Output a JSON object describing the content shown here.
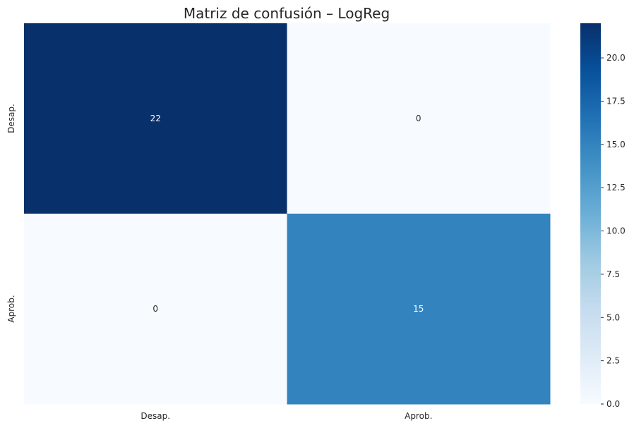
{
  "chart_data": {
    "type": "heatmap",
    "title": "Matriz de confusión – LogReg",
    "x_categories": [
      "Desap.",
      "Aprob."
    ],
    "y_categories": [
      "Desap.",
      "Aprob."
    ],
    "values": [
      [
        22,
        0
      ],
      [
        0,
        15
      ]
    ],
    "colormap": "Blues",
    "color_low": "#f7fbff",
    "color_high": "#08306b",
    "vmin": 0,
    "vmax": 22,
    "colorbar_ticks": [
      "0.0",
      "2.5",
      "5.0",
      "7.5",
      "10.0",
      "12.5",
      "15.0",
      "17.5",
      "20.0"
    ],
    "annotation_dark_text": "#262626",
    "annotation_light_text": "#ffffff"
  }
}
